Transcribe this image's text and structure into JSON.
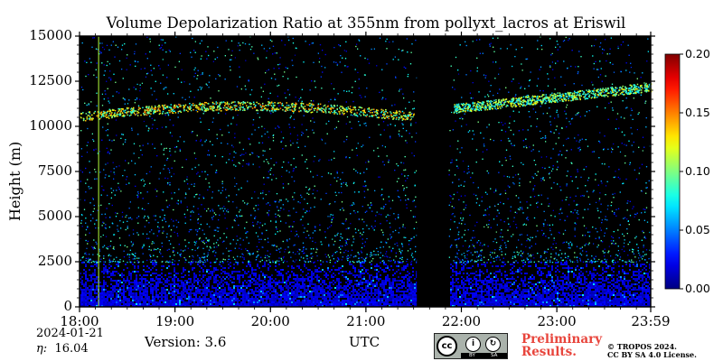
{
  "chart_data": {
    "type": "heatmap",
    "title": "Volume Depolarization Ratio at 355nm from pollyxt_lacros at Eriswil",
    "xlabel": "UTC",
    "ylabel": "Height (m)",
    "ylim": [
      0,
      15000
    ],
    "xlim": [
      "18:00",
      "23:59"
    ],
    "x_ticks": [
      "18:00",
      "19:00",
      "20:00",
      "21:00",
      "22:00",
      "23:00",
      "23:59"
    ],
    "y_ticks": [
      "0",
      "2500",
      "5000",
      "7500",
      "10000",
      "12500",
      "15000"
    ],
    "colorbar": {
      "min": 0.0,
      "max": 0.2,
      "ticks": [
        "0.00",
        "0.05",
        "0.10",
        "0.15",
        "0.20"
      ],
      "colormap": "jet"
    },
    "data_gap_utc": [
      "21:32",
      "21:52"
    ],
    "features": [
      {
        "kind": "boundary_layer",
        "height_range_m": [
          0,
          2500
        ],
        "depol_approx": 0.02
      },
      {
        "kind": "cirrus_layer",
        "time_range_utc": [
          "18:00",
          "21:30"
        ],
        "height_range_m": [
          10200,
          11400
        ],
        "depol_approx": 0.12
      },
      {
        "kind": "cirrus_layer",
        "time_range_utc": [
          "21:55",
          "23:59"
        ],
        "height_range_m": [
          11000,
          12200
        ],
        "depol_approx": 0.1
      },
      {
        "kind": "vertical_streak",
        "time_utc": "18:12",
        "depol_approx": 0.12
      }
    ]
  },
  "footer": {
    "date": "2024-01-21",
    "eta_label": "η:",
    "eta_value": "16.04",
    "version": "Version: 3.6",
    "preliminary_line1": "Preliminary",
    "preliminary_line2": "Results.",
    "copyright_line1": "© TROPOS 2024.",
    "copyright_line2": "CC BY SA 4.0 License.",
    "cc_badge": {
      "cc": "cc",
      "by": "BY",
      "sa": "SA"
    }
  },
  "colors": {
    "background": "#000000",
    "low": "#0a4cf5",
    "accent_streak": "#b4ff3c"
  }
}
